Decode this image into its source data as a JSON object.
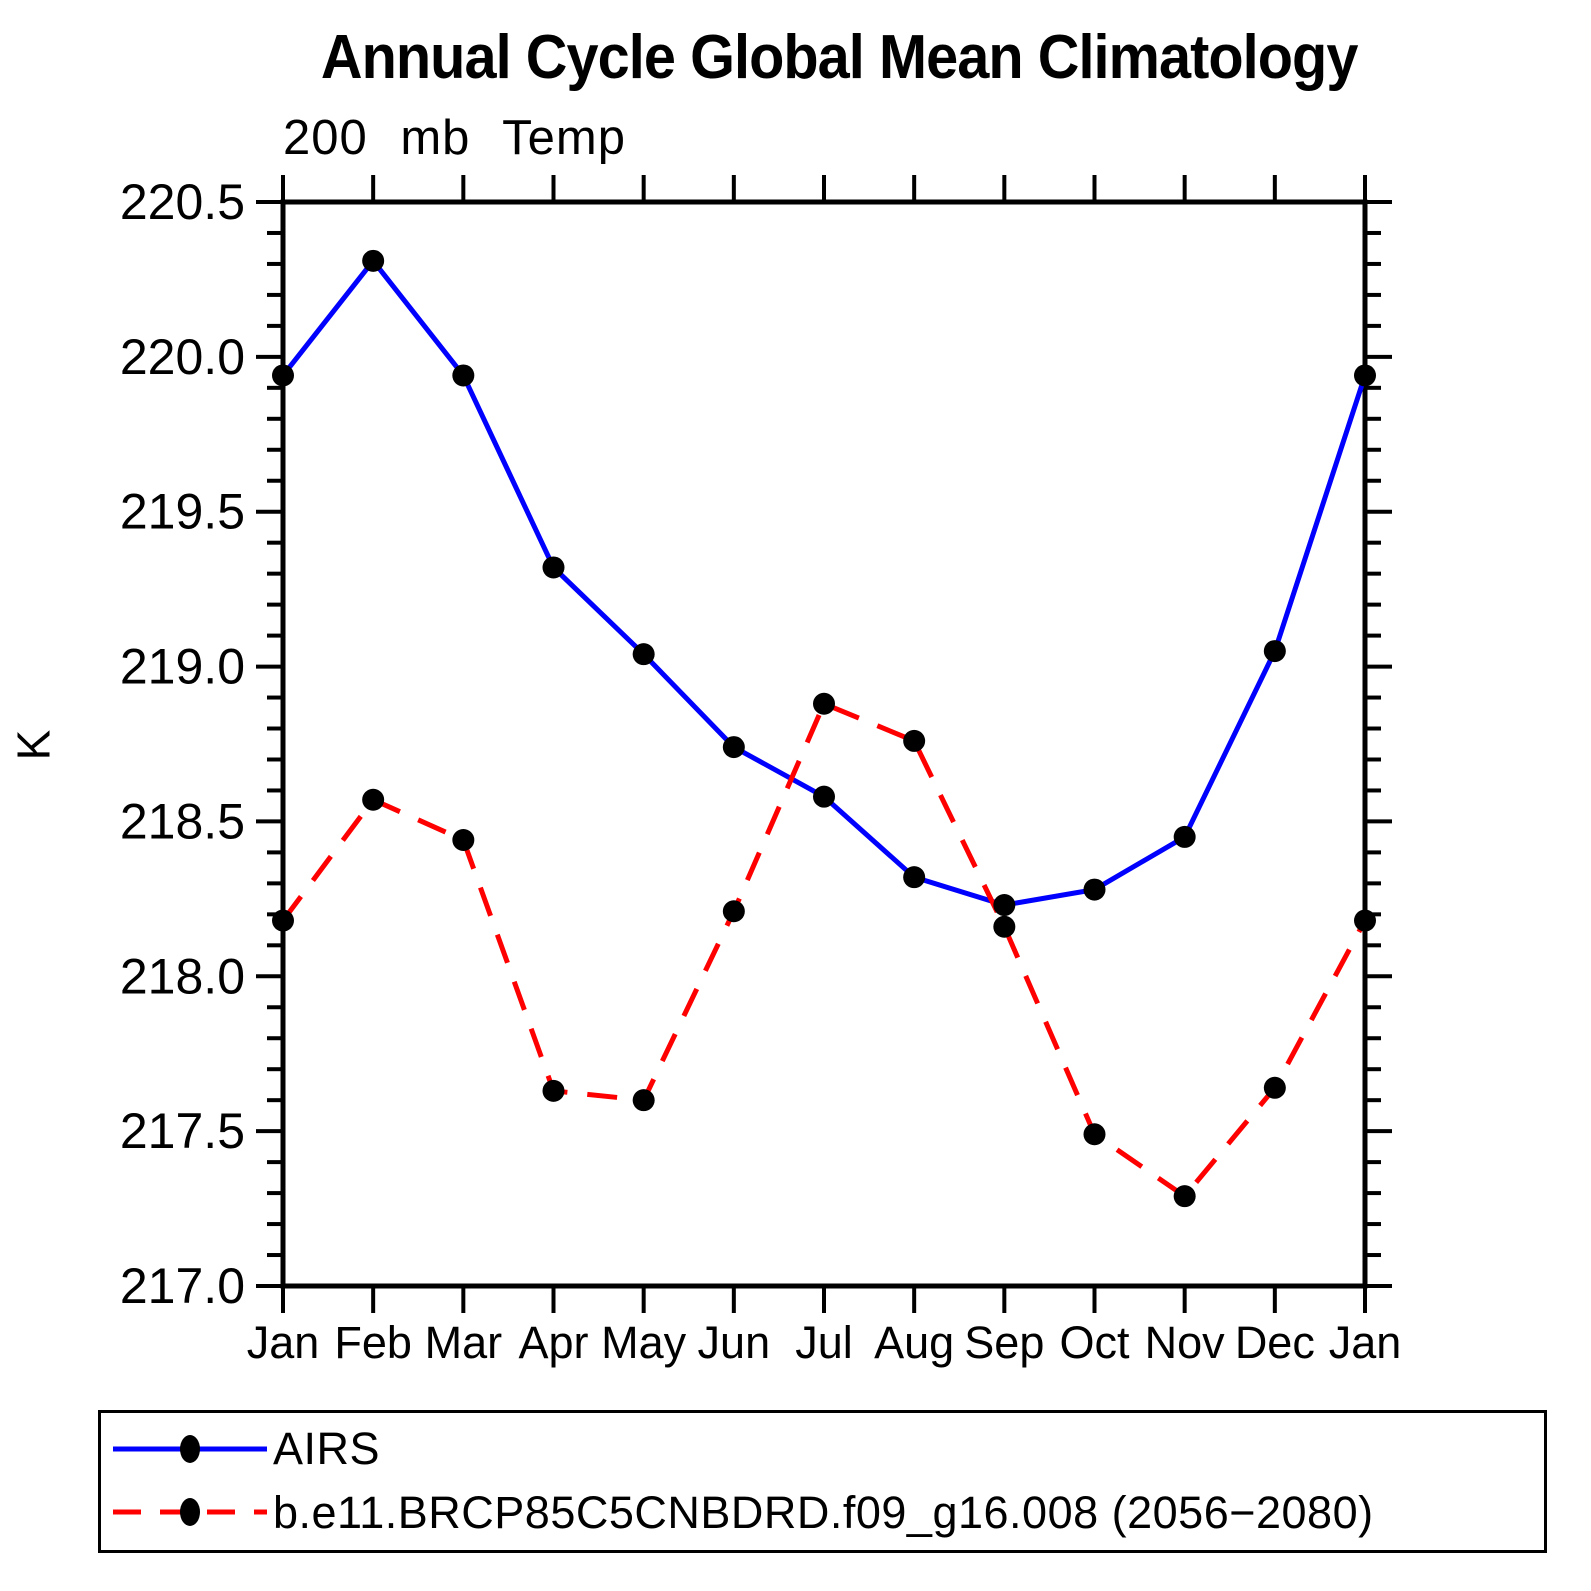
{
  "chart_data": {
    "type": "line",
    "title": "Annual Cycle Global Mean Climatology",
    "subtitle": "200 mb Temp",
    "ylabel": "K",
    "ylim": [
      217.0,
      220.5
    ],
    "y_major_step": 0.5,
    "y_minor_step": 0.1,
    "y_tick_labels": [
      "217.0",
      "217.5",
      "218.0",
      "218.5",
      "219.0",
      "219.5",
      "220.0",
      "220.5"
    ],
    "categories": [
      "Jan",
      "Feb",
      "Mar",
      "Apr",
      "May",
      "Jun",
      "Jul",
      "Aug",
      "Sep",
      "Oct",
      "Nov",
      "Dec",
      "Jan"
    ],
    "series": [
      {
        "name": "AIRS",
        "color": "#0000ff",
        "style": "solid",
        "marker": "filled-circle",
        "marker_color": "#000000",
        "values": [
          219.94,
          220.31,
          219.94,
          219.32,
          219.04,
          218.74,
          218.58,
          218.32,
          218.23,
          218.28,
          218.45,
          219.05,
          219.94
        ]
      },
      {
        "name": "b.e11.BRCP85C5CNBDRD.f09_g16.008 (2056−2080)",
        "color": "#ff0000",
        "style": "dashed",
        "marker": "filled-circle",
        "marker_color": "#000000",
        "values": [
          218.18,
          218.57,
          218.44,
          217.63,
          217.6,
          218.21,
          218.88,
          218.76,
          218.16,
          217.49,
          217.29,
          217.64,
          218.18
        ]
      }
    ],
    "grid": false,
    "legend_position": "bottom-left-box",
    "axis_color": "#000000",
    "background_color": "#ffffff"
  }
}
